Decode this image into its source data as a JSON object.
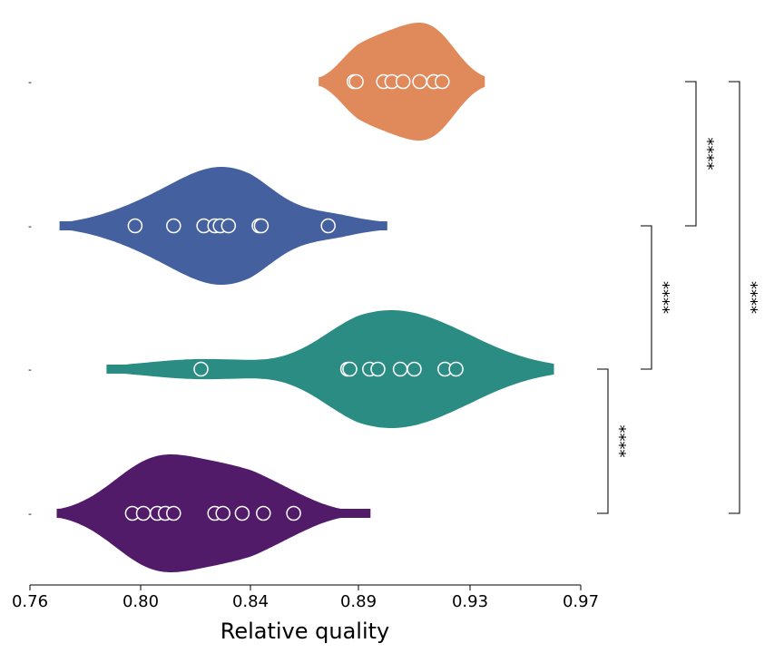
{
  "chart_data": {
    "type": "violin",
    "orientation": "horizontal",
    "xlabel": "Relative quality",
    "ylabel": "",
    "xlim": [
      0.76,
      0.97
    ],
    "x_ticks": [
      0.76,
      0.8,
      0.84,
      0.89,
      0.93,
      0.97
    ],
    "x_tick_labels": [
      "0.76",
      "0.80",
      "0.84",
      "0.89",
      "0.93",
      "0.97"
    ],
    "y_tick_labels": [
      "-",
      "-",
      "-",
      "-"
    ],
    "grid": false,
    "legend": "none",
    "series": [
      {
        "color": "#e0895a",
        "points": [
          0.888,
          0.889,
          0.899,
          0.902,
          0.906,
          0.912,
          0.917,
          0.917,
          0.92
        ],
        "range": [
          0.872,
          0.935
        ]
      },
      {
        "color": "#44609f",
        "points": [
          0.798,
          0.812,
          0.823,
          0.827,
          0.829,
          0.832,
          0.844,
          0.845,
          0.876
        ],
        "range": [
          0.771,
          0.9
        ]
      },
      {
        "color": "#2a8c82",
        "points": [
          0.822,
          0.885,
          0.886,
          0.894,
          0.897,
          0.905,
          0.91,
          0.921,
          0.925
        ],
        "range": [
          0.788,
          0.96
        ]
      },
      {
        "color": "#511b6a",
        "points": [
          0.797,
          0.801,
          0.806,
          0.809,
          0.812,
          0.827,
          0.83,
          0.837,
          0.846,
          0.86
        ],
        "range": [
          0.77,
          0.894
        ]
      }
    ],
    "annotations": [
      {
        "groups": [
          0,
          1
        ],
        "label": "****"
      },
      {
        "groups": [
          1,
          2
        ],
        "label": "****"
      },
      {
        "groups": [
          2,
          3
        ],
        "label": "****"
      },
      {
        "groups": [
          0,
          3
        ],
        "label": "****"
      }
    ]
  }
}
